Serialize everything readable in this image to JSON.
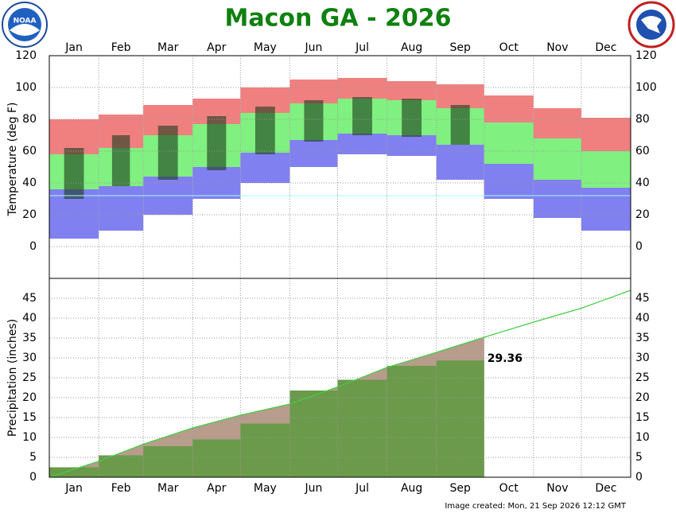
{
  "chart_data": [
    {
      "type": "temperature_range",
      "title": "Macon GA - 2026",
      "ylabel": "Temperature (deg F)",
      "categories": [
        "Jan",
        "Feb",
        "Mar",
        "Apr",
        "May",
        "Jun",
        "Jul",
        "Aug",
        "Sep",
        "Oct",
        "Nov",
        "Dec"
      ],
      "record_high": [
        80,
        83,
        89,
        93,
        100,
        105,
        106,
        104,
        102,
        95,
        87,
        81
      ],
      "normal_high": [
        58,
        62,
        70,
        77,
        84,
        90,
        93,
        92,
        87,
        78,
        68,
        60
      ],
      "normal_low": [
        36,
        38,
        44,
        50,
        59,
        67,
        71,
        70,
        64,
        52,
        42,
        37
      ],
      "record_low": [
        5,
        10,
        20,
        30,
        40,
        50,
        58,
        57,
        42,
        30,
        18,
        10
      ],
      "observed_high": [
        62,
        70,
        76,
        82,
        88,
        92,
        94,
        93,
        89,
        null,
        null,
        null
      ],
      "observed_low": [
        30,
        38,
        42,
        48,
        58,
        66,
        70,
        69,
        64,
        null,
        null,
        null
      ],
      "colors": {
        "record_high": "#f08080",
        "normal": "#80f080",
        "record_low": "#8080f0",
        "observed": "#1a3a1a",
        "freezing": "#a0ffff"
      },
      "freezing_line": 32,
      "ylim": [
        -20,
        120
      ],
      "yticks": [
        0,
        20,
        40,
        60,
        80,
        100,
        120
      ],
      "grid": true,
      "logos": {
        "noaa": "NOAA"
      }
    },
    {
      "type": "cumulative_precip",
      "ylabel": "Precipitation (inches)",
      "categories": [
        "Jan",
        "Feb",
        "Mar",
        "Apr",
        "May",
        "Jun",
        "Jul",
        "Aug",
        "Sep",
        "Oct",
        "Nov",
        "Dec"
      ],
      "normal": [
        4.0,
        8.3,
        12.4,
        15.6,
        18.4,
        22.7,
        27.6,
        31.4,
        35.2,
        39.0,
        42.5,
        47.0
      ],
      "observed": [
        2.5,
        5.5,
        7.8,
        9.5,
        13.5,
        21.8,
        24.5,
        28.0,
        29.36
      ],
      "colors": {
        "normal_line": "#40d040",
        "normal_area": "#b89c8c",
        "observed": "#6a9a4a"
      },
      "ylim": [
        0,
        50
      ],
      "yticks": [
        0,
        5,
        10,
        15,
        20,
        25,
        30,
        35,
        40,
        45
      ],
      "grid": true,
      "note": "Image created: Mon, 21 Sep 2026 12:12 GMT"
    }
  ]
}
